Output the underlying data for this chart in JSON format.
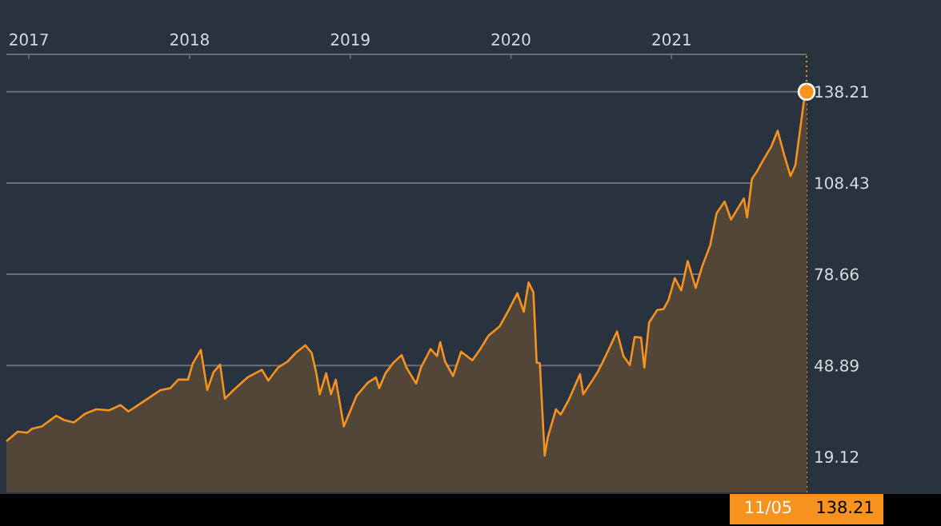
{
  "chart_data": {
    "type": "area",
    "x": [
      "2016-11-10",
      "2016-12-08",
      "2016-12-27",
      "2017-01-08",
      "2017-02-01",
      "2017-03-04",
      "2017-03-22",
      "2017-04-15",
      "2017-05-09",
      "2017-06-03",
      "2017-07-03",
      "2017-07-27",
      "2017-08-17",
      "2017-09-20",
      "2017-10-26",
      "2017-11-19",
      "2017-12-08",
      "2017-12-28",
      "2018-01-09",
      "2018-01-26",
      "2018-02-10",
      "2018-02-24",
      "2018-03-10",
      "2018-03-23",
      "2018-04-14",
      "2018-05-11",
      "2018-06-13",
      "2018-06-28",
      "2018-07-19",
      "2018-08-13",
      "2018-08-31",
      "2018-09-22",
      "2018-10-06",
      "2018-10-15",
      "2018-10-25",
      "2018-11-08",
      "2018-11-18",
      "2018-11-28",
      "2018-12-19",
      "2019-01-15",
      "2019-02-11",
      "2019-03-01",
      "2019-03-09",
      "2019-03-22",
      "2019-04-10",
      "2019-04-27",
      "2019-05-10",
      "2019-05-29",
      "2019-06-10",
      "2019-07-04",
      "2019-07-16",
      "2019-07-26",
      "2019-08-06",
      "2019-08-22",
      "2019-09-11",
      "2019-10-06",
      "2019-10-24",
      "2019-11-12",
      "2019-12-05",
      "2019-12-23",
      "2020-01-16",
      "2020-01-29",
      "2020-02-12",
      "2020-02-20",
      "2020-02-28",
      "2020-03-07",
      "2020-03-17",
      "2020-03-27",
      "2020-04-13",
      "2020-04-25",
      "2020-05-11",
      "2020-06-05",
      "2020-06-13",
      "2020-07-05",
      "2020-07-15",
      "2020-07-29",
      "2020-08-10",
      "2020-08-28",
      "2020-09-13",
      "2020-09-28",
      "2020-10-10",
      "2020-10-22",
      "2020-10-30",
      "2020-11-09",
      "2020-11-28",
      "2020-12-12",
      "2020-12-25",
      "2021-01-10",
      "2021-01-22",
      "2021-02-07",
      "2021-02-24",
      "2021-03-11",
      "2021-03-29",
      "2021-04-13",
      "2021-05-03",
      "2021-05-17",
      "2021-06-13",
      "2021-06-20",
      "2021-07-02",
      "2021-07-14",
      "2021-07-28",
      "2021-08-16",
      "2021-08-31",
      "2021-09-12",
      "2021-09-29",
      "2021-10-09",
      "2021-10-31",
      "2021-11-05"
    ],
    "series": [
      {
        "color": "#f7931e",
        "values": [
          24.2,
          27.3,
          27.0,
          28.3,
          29.0,
          32.5,
          31.1,
          30.3,
          33.2,
          34.6,
          34.3,
          36.0,
          33.9,
          37.4,
          40.9,
          41.5,
          44.3,
          44.3,
          49.6,
          54.0,
          40.9,
          46.8,
          49.2,
          38.1,
          41.2,
          45.0,
          47.5,
          44.0,
          48.2,
          50.2,
          53.0,
          55.5,
          53.0,
          46.1,
          39.5,
          46.4,
          39.5,
          44.3,
          29.0,
          39.1,
          43.3,
          45.0,
          41.5,
          46.4,
          49.9,
          52.3,
          48.2,
          43.0,
          48.2,
          54.3,
          52.0,
          56.5,
          50.2,
          45.5,
          53.4,
          50.6,
          54.3,
          58.6,
          61.7,
          66.4,
          72.5,
          66.4,
          76.0,
          72.8,
          49.9,
          49.6,
          19.5,
          25.6,
          34.6,
          32.9,
          37.7,
          46.1,
          39.5,
          44.3,
          46.8,
          49.9,
          54.3,
          60.0,
          52.0,
          49.0,
          58.2,
          58.0,
          48.2,
          62.9,
          67.0,
          67.3,
          70.2,
          77.4,
          73.4,
          83.0,
          74.2,
          81.2,
          88.1,
          98.6,
          102.4,
          96.5,
          103.4,
          97.2,
          109.8,
          112.1,
          115.9,
          120.3,
          125.5,
          117.7,
          110.7,
          114.2,
          137.7,
          138.21
        ]
      },
      {
        "type": "scatter",
        "color": "#f7931e",
        "marker": "circle",
        "x": [
          "2021-11-05"
        ],
        "values": [
          138.21
        ]
      }
    ],
    "xlim": [
      "2016-11-10",
      "2021-11-05"
    ],
    "xticks": [
      "2017",
      "2018",
      "2019",
      "2020",
      "2021"
    ],
    "ylim": [
      7.5,
      150.4
    ],
    "yticks": [
      19.12,
      48.89,
      78.66,
      108.43,
      138.21
    ],
    "grid": "y",
    "ref_lines": [
      {
        "axis": "x",
        "value": "2021-11-05",
        "color": "#f7931e",
        "line_style": "dotted"
      }
    ],
    "annotations": [
      "11/05",
      "138.21"
    ]
  }
}
